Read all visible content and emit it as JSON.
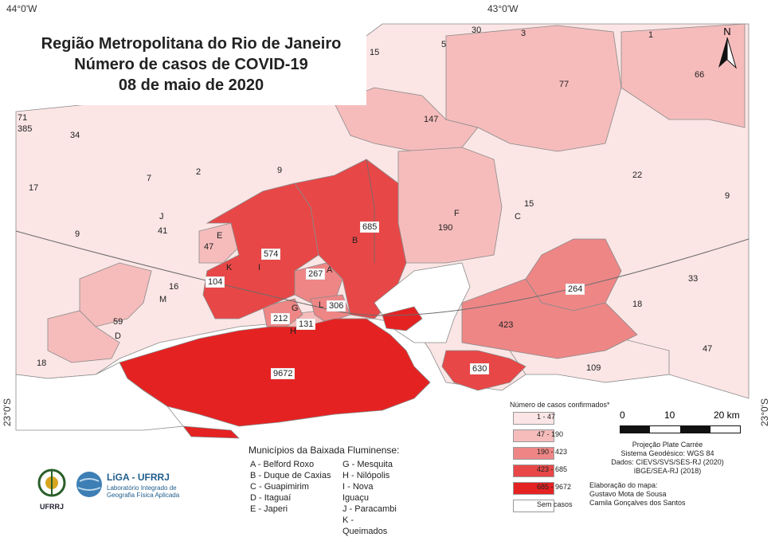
{
  "title": {
    "line1": "Região Metropolitana do Rio de Janeiro",
    "line2": "Número de casos de COVID-19",
    "line3": "08 de maio de 2020"
  },
  "coordinates": {
    "top_left": "44°0'W",
    "top_mid": "43°0'W",
    "left_lat": "23°0'S",
    "right_lat": "23°0'S"
  },
  "colors": {
    "class1": "#fbe5e5",
    "class2": "#f6bcbc",
    "class3": "#ee8686",
    "class4": "#e84747",
    "class5": "#e52222",
    "sem_casos": "#ffffff",
    "border": "#8a8a8a"
  },
  "case_labels": [
    {
      "text": "71"
    },
    {
      "text": "385"
    },
    {
      "text": "34"
    },
    {
      "text": "17"
    },
    {
      "text": "7"
    },
    {
      "text": "2"
    },
    {
      "text": "9"
    },
    {
      "text": "15"
    },
    {
      "text": "5"
    },
    {
      "text": "30"
    },
    {
      "text": "3"
    },
    {
      "text": "1"
    },
    {
      "text": "77"
    },
    {
      "text": "66"
    },
    {
      "text": "147"
    },
    {
      "text": "22"
    },
    {
      "text": "9"
    },
    {
      "text": "15"
    },
    {
      "text": "190"
    },
    {
      "text": "685"
    },
    {
      "text": "9"
    },
    {
      "text": "41"
    },
    {
      "text": "47"
    },
    {
      "text": "574"
    },
    {
      "text": "267"
    },
    {
      "text": "104"
    },
    {
      "text": "16"
    },
    {
      "text": "33"
    },
    {
      "text": "264"
    },
    {
      "text": "18"
    },
    {
      "text": "306"
    },
    {
      "text": "212"
    },
    {
      "text": "131"
    },
    {
      "text": "59"
    },
    {
      "text": "423"
    },
    {
      "text": "47"
    },
    {
      "text": "18"
    },
    {
      "text": "9672"
    },
    {
      "text": "630"
    },
    {
      "text": "109"
    }
  ],
  "letter_labels": [
    "J",
    "E",
    "K",
    "I",
    "A",
    "B",
    "F",
    "C",
    "M",
    "G",
    "H",
    "L",
    "D"
  ],
  "legend": {
    "title": "Número de casos confirmados*",
    "items": [
      {
        "label": "1 - 47",
        "color": "#fbe5e5"
      },
      {
        "label": "47 - 190",
        "color": "#f6bcbc"
      },
      {
        "label": "190 - 423",
        "color": "#ee8686"
      },
      {
        "label": "423 - 685",
        "color": "#e84747"
      },
      {
        "label": "685 - 9672",
        "color": "#e52222"
      },
      {
        "label": "Sem casos",
        "color": "#ffffff"
      }
    ]
  },
  "scale_bar": {
    "labels": [
      "0",
      "10",
      "20 km"
    ]
  },
  "credits": {
    "line1": "Projeção Plate Carrée",
    "line2": "Sistema Geodésico: WGS 84",
    "line3": "Dados: CIEVS/SVS/SES-RJ (2020)",
    "line4": "IBGE/SEA-RJ (2018)"
  },
  "authors": {
    "line1": "Elaboração do mapa:",
    "line2": "Gustavo Mota de Sousa",
    "line3": "Camila Gonçalves dos Santos"
  },
  "baixada": {
    "header": "Municípios da Baixada Fluminense:",
    "col1": [
      "A - Belford Roxo",
      "B - Duque de Caxias",
      "C - Guapimirim",
      "D - Itaguaí",
      "E - Japeri"
    ],
    "col2": [
      "G - Mesquita",
      "H - Nilópolis",
      "I - Nova Iguaçu",
      "J - Paracambi",
      "K - Queimados"
    ]
  },
  "north_label": "N",
  "logos": {
    "ufrrj": "UFRRJ",
    "liga_name": "LiGA - UFRRJ",
    "liga_sub1": "Laboratório Integrado de",
    "liga_sub2": "Geografia Física Aplicada"
  }
}
